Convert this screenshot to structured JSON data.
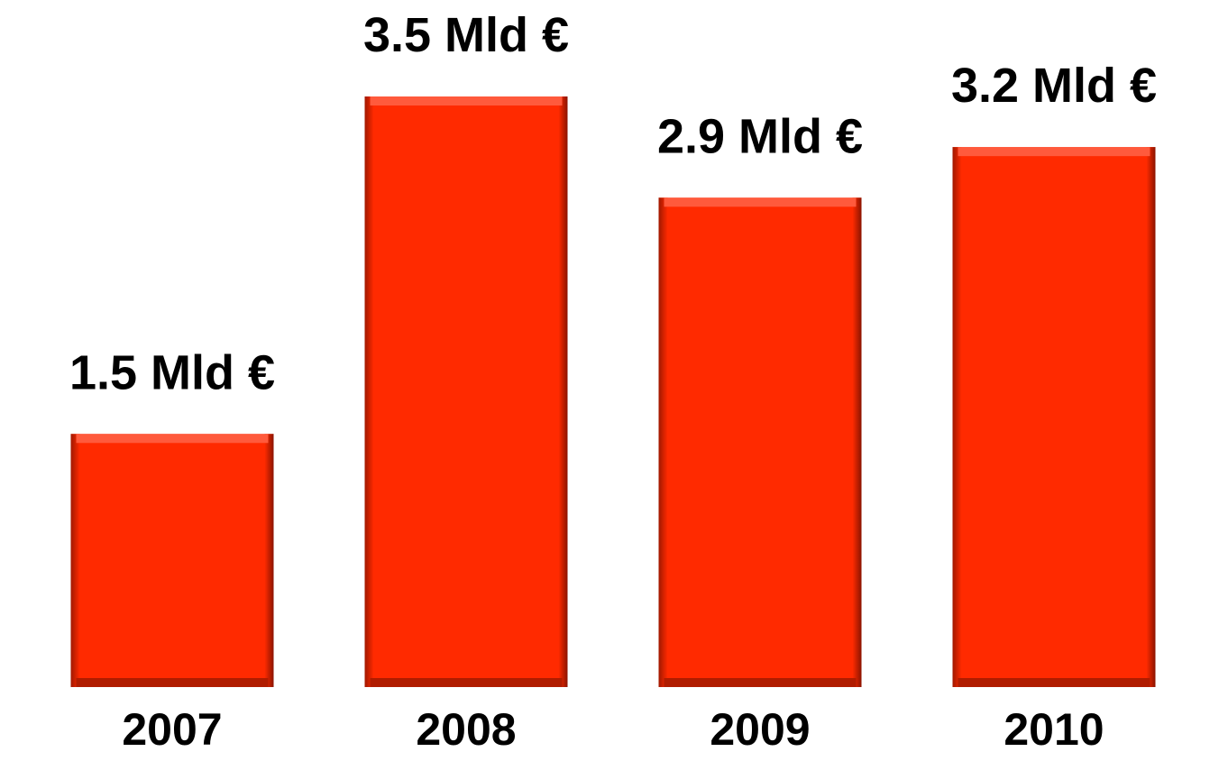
{
  "chart_data": {
    "type": "bar",
    "categories": [
      "2007",
      "2008",
      "2009",
      "2010"
    ],
    "values": [
      1.5,
      3.5,
      2.9,
      3.2
    ],
    "value_labels": [
      "1.5 Mld €",
      "3.5 Mld €",
      "2.9 Mld €",
      "3.2 Mld €"
    ],
    "color": "#ff2a00"
  }
}
